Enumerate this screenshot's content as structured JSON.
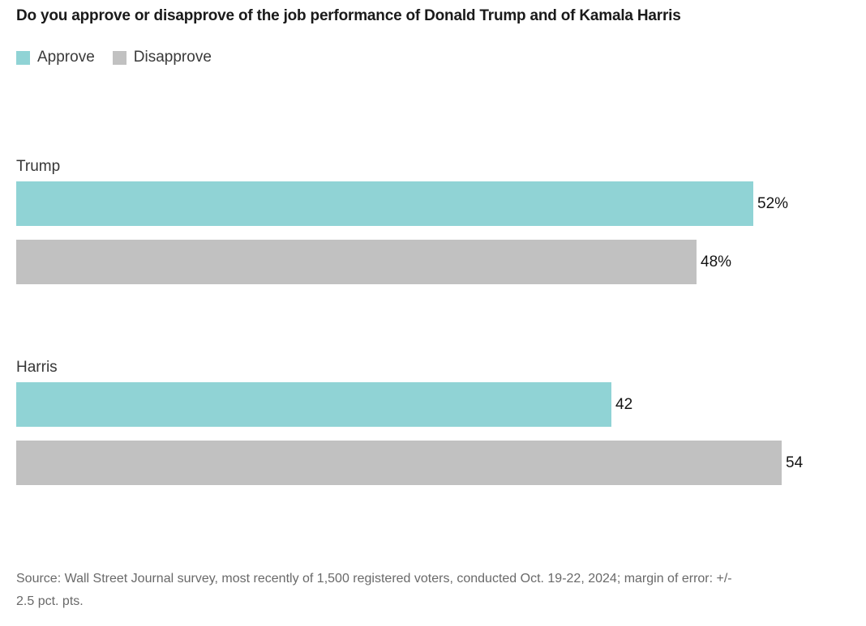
{
  "chart_data": {
    "type": "bar",
    "orientation": "horizontal",
    "title": "Do you approve or disapprove of the job performance of Donald Trump and of Kamala Harris",
    "categories": [
      "Trump",
      "Harris"
    ],
    "series": [
      {
        "name": "Approve",
        "color": "#90d3d5",
        "values": [
          52,
          42
        ],
        "value_labels": [
          "52%",
          "42"
        ]
      },
      {
        "name": "Disapprove",
        "color": "#c1c1c1",
        "values": [
          48,
          54
        ],
        "value_labels": [
          "48%",
          "54"
        ]
      }
    ],
    "xlim": [
      0,
      60
    ],
    "grid": false,
    "legend_position": "top-left",
    "value_labels_position": "outside-right"
  },
  "footer": {
    "source_line1": "Source: Wall Street Journal survey, most recently of 1,500 registered voters, conducted Oct. 19-22, 2024; margin of error: +/-",
    "source_line2": "2.5 pct. pts."
  }
}
